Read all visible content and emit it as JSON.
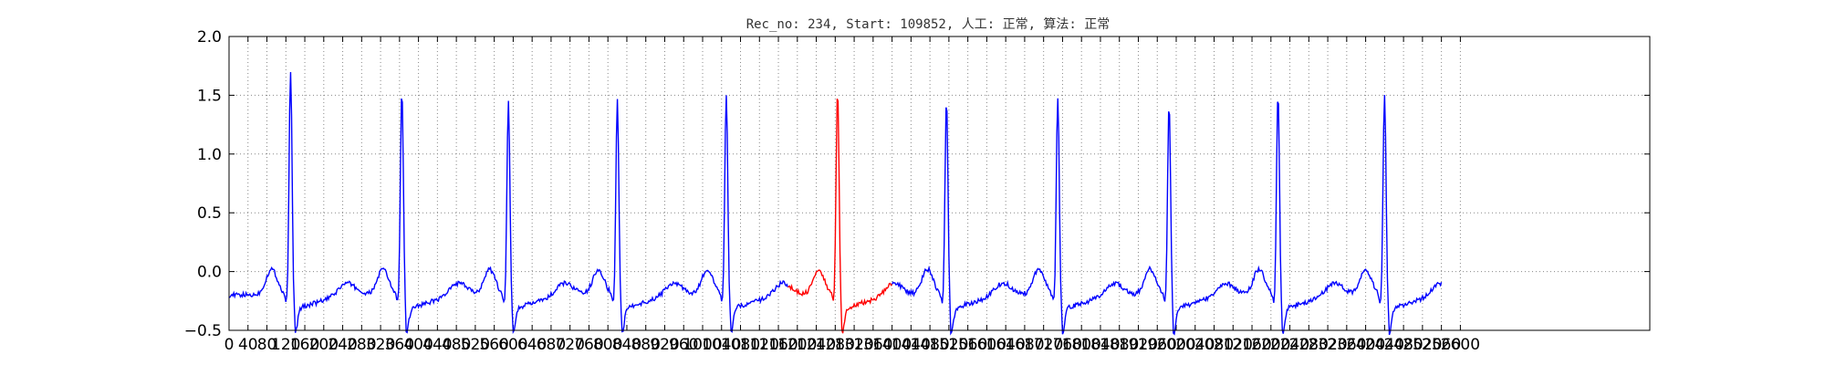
{
  "chart_data": {
    "type": "line",
    "title": "Rec_no: 234, Start: 109852, 人工: 正常, 算法: 正常",
    "xlabel": "",
    "ylabel": "",
    "xlim": [
      0,
      3000
    ],
    "ylim": [
      -0.5,
      2.0
    ],
    "yticks": [
      "−0.5",
      "0.0",
      "0.5",
      "1.0",
      "1.5",
      "2.0"
    ],
    "yticks_values": [
      -0.5,
      0.0,
      0.5,
      1.0,
      1.5,
      2.0
    ],
    "xtick_labels_text": "0 4080 120 160 200 240 280 320 360 400 440 480 520 560 600 640 680 720 760 800 840 880 920 960 1000 1040 1080 1120 1160 1200 1240 1280 1320 1360 1400 1440 1480 1520 1560 1600 1640 1680 1720 1760 1800 1840 1880 1920 1960 2000 2040 2080 2120 2160 2200 2240 2280 2320 2360 2400 2440 2480 2520 2560 2600",
    "xtick_labels": [
      "0",
      "40",
      "80",
      "120",
      "160",
      "200",
      "240",
      "280",
      "320",
      "360",
      "400",
      "440",
      "480",
      "520",
      "560",
      "600",
      "640",
      "680",
      "720",
      "760",
      "800",
      "840",
      "880",
      "920",
      "960",
      "1000",
      "1040",
      "1080",
      "1120",
      "1160",
      "1200",
      "1240",
      "1280",
      "1320",
      "1360",
      "1400",
      "1440",
      "1480",
      "1520",
      "1560",
      "1600",
      "1640",
      "1680",
      "1720",
      "1760",
      "1800",
      "1840",
      "1880",
      "1920",
      "1960",
      "2000",
      "2040",
      "2080",
      "2120",
      "2160",
      "2200",
      "2240",
      "2280",
      "2320",
      "2360",
      "2400",
      "2440",
      "2480",
      "2520",
      "2560",
      "2600"
    ],
    "xtick_values": [
      0,
      40,
      80,
      120,
      160,
      200,
      240,
      280,
      320,
      360,
      400,
      440,
      480,
      520,
      560,
      600,
      640,
      680,
      720,
      760,
      800,
      840,
      880,
      920,
      960,
      1000,
      1040,
      1080,
      1120,
      1160,
      1200,
      1240,
      1280,
      1320,
      1360,
      1400,
      1440,
      1480,
      1520,
      1560,
      1600,
      1640,
      1680,
      1720,
      1760,
      1800,
      1840,
      1880,
      1920,
      1960,
      2000,
      2040,
      2080,
      2120,
      2160,
      2200,
      2240,
      2280,
      2320,
      2360,
      2400,
      2440,
      2480,
      2520,
      2560,
      2600
    ],
    "grid": true,
    "series": [
      {
        "color": "#0000ff",
        "segment": "before",
        "x_range": [
          0,
          1180
        ]
      },
      {
        "color": "#ff0000",
        "segment": "highlight",
        "x_range": [
          1180,
          1400
        ]
      },
      {
        "color": "#0000ff",
        "segment": "after",
        "x_range": [
          1400,
          2560
        ]
      }
    ],
    "r_peaks": [
      {
        "x": 130,
        "y": 1.7
      },
      {
        "x": 365,
        "y": 1.54
      },
      {
        "x": 590,
        "y": 1.44
      },
      {
        "x": 820,
        "y": 1.45
      },
      {
        "x": 1050,
        "y": 1.51
      },
      {
        "x": 1285,
        "y": 1.56
      },
      {
        "x": 1515,
        "y": 1.48
      },
      {
        "x": 1750,
        "y": 1.48
      },
      {
        "x": 1985,
        "y": 1.44
      },
      {
        "x": 2215,
        "y": 1.51
      },
      {
        "x": 2440,
        "y": 1.51
      }
    ],
    "baseline": -0.2,
    "colors": {
      "signal": "#0000ff",
      "highlight": "#ff0000",
      "grid": "#888888"
    }
  }
}
